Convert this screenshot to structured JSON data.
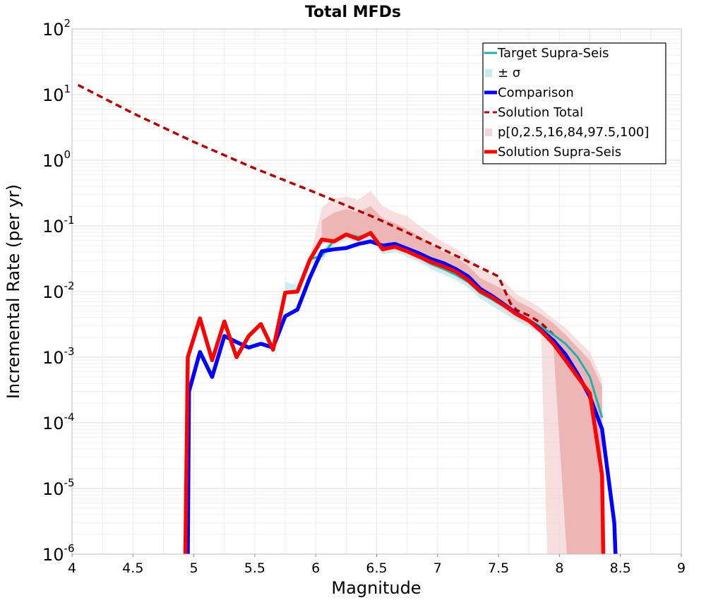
{
  "chart_data": {
    "type": "line",
    "title": "Total MFDs",
    "xlabel": "Magnitude",
    "ylabel": "Incremental Rate (per yr)",
    "xlim": [
      4,
      9
    ],
    "ylim": [
      1e-06,
      100
    ],
    "yscale": "log",
    "grid": true,
    "legend_position": "top-right",
    "x_ticks": [
      "4",
      "4.5",
      "5",
      "5.5",
      "6",
      "6.5",
      "7",
      "7.5",
      "8",
      "8.5",
      "9"
    ],
    "y_ticks": [
      {
        "base": "10",
        "exp": "-6"
      },
      {
        "base": "10",
        "exp": "-5"
      },
      {
        "base": "10",
        "exp": "-4"
      },
      {
        "base": "10",
        "exp": "-3"
      },
      {
        "base": "10",
        "exp": "-2"
      },
      {
        "base": "10",
        "exp": "-1"
      },
      {
        "base": "10",
        "exp": "0"
      },
      {
        "base": "10",
        "exp": "1"
      },
      {
        "base": "10",
        "exp": "2"
      }
    ],
    "legend": [
      {
        "label": "Target Supra-Seis",
        "color": "#20b2aa",
        "style": "line"
      },
      {
        "label": "± σ",
        "color": "#c8ecec",
        "style": "patch"
      },
      {
        "label": "Comparison",
        "color": "#0000ff",
        "style": "line-thick"
      },
      {
        "label": "Solution Total",
        "color": "#b20000",
        "style": "dashed"
      },
      {
        "label": "p[0,2.5,16,84,97.5,100]",
        "color": "#f4d4d4",
        "style": "patch"
      },
      {
        "label": "Solution Supra-Seis",
        "color": "#ff0000",
        "style": "line-thick"
      }
    ],
    "series": [
      {
        "name": "Solution Total",
        "color": "#b20000",
        "x": [
          4.05,
          4.5,
          5.0,
          5.5,
          6.0,
          6.5,
          7.0,
          7.5,
          7.55,
          7.6,
          7.65,
          7.75,
          7.85,
          7.95
        ],
        "y": [
          14,
          5.2,
          1.9,
          0.75,
          0.32,
          0.13,
          0.048,
          0.017,
          0.0105,
          0.0065,
          0.0052,
          0.0043,
          0.0033,
          0.0022
        ]
      },
      {
        "name": "Target Supra-Seis",
        "color": "#20b2aa",
        "x": [
          5.95,
          6.05,
          6.15,
          6.25,
          6.35,
          6.45,
          6.55,
          6.65,
          6.75,
          6.85,
          6.95,
          7.05,
          7.15,
          7.25,
          7.35,
          7.45,
          7.55,
          7.65,
          7.75,
          7.85,
          7.95,
          8.05,
          8.15,
          8.25,
          8.35
        ],
        "y": [
          0.031,
          0.035,
          0.06,
          0.075,
          0.068,
          0.075,
          0.045,
          0.047,
          0.04,
          0.033,
          0.026,
          0.022,
          0.018,
          0.014,
          0.0095,
          0.0075,
          0.0058,
          0.0045,
          0.0037,
          0.0029,
          0.0022,
          0.0016,
          0.001,
          0.0005,
          0.00012
        ]
      },
      {
        "name": "Comparison",
        "color": "#0000ff",
        "x": [
          4.95,
          4.96,
          5.05,
          5.15,
          5.25,
          5.35,
          5.45,
          5.55,
          5.65,
          5.75,
          5.85,
          5.95,
          6.05,
          6.15,
          6.25,
          6.35,
          6.45,
          6.55,
          6.65,
          6.75,
          6.85,
          6.95,
          7.05,
          7.15,
          7.25,
          7.35,
          7.45,
          7.55,
          7.65,
          7.75,
          7.85,
          7.95,
          8.05,
          8.15,
          8.25,
          8.35,
          8.45,
          8.46
        ],
        "y": [
          8e-07,
          0.0003,
          0.0012,
          0.0005,
          0.0021,
          0.0017,
          0.0014,
          0.0016,
          0.0014,
          0.0042,
          0.0053,
          0.016,
          0.041,
          0.044,
          0.046,
          0.053,
          0.058,
          0.05,
          0.053,
          0.045,
          0.038,
          0.031,
          0.027,
          0.022,
          0.017,
          0.011,
          0.0085,
          0.0063,
          0.0046,
          0.0036,
          0.0026,
          0.0018,
          0.0011,
          0.00055,
          0.00025,
          8e-05,
          3e-06,
          8e-07
        ]
      },
      {
        "name": "Solution Supra-Seis",
        "color": "#ff0000",
        "x": [
          4.93,
          4.95,
          5.05,
          5.15,
          5.25,
          5.35,
          5.45,
          5.55,
          5.65,
          5.75,
          5.85,
          5.95,
          6.05,
          6.15,
          6.25,
          6.35,
          6.45,
          6.55,
          6.65,
          6.75,
          6.85,
          6.95,
          7.05,
          7.15,
          7.25,
          7.35,
          7.45,
          7.55,
          7.65,
          7.75,
          7.85,
          7.95,
          8.05,
          8.15,
          8.25,
          8.35,
          8.36
        ],
        "y": [
          8e-07,
          0.001,
          0.0039,
          0.0009,
          0.0035,
          0.001,
          0.0021,
          0.0032,
          0.0013,
          0.0096,
          0.01,
          0.03,
          0.062,
          0.058,
          0.074,
          0.063,
          0.078,
          0.044,
          0.048,
          0.041,
          0.034,
          0.028,
          0.024,
          0.02,
          0.015,
          0.0102,
          0.0081,
          0.0061,
          0.0045,
          0.0036,
          0.0025,
          0.0016,
          0.0009,
          0.0005,
          0.00028,
          1.6e-05,
          8e-07
        ]
      }
    ],
    "bands": [
      {
        "name": "± σ",
        "color": "#b9e8e8",
        "x": [
          5.75,
          5.85,
          5.95,
          6.05,
          6.15,
          6.25,
          6.35,
          6.45,
          6.55,
          6.65,
          6.75,
          6.85,
          6.95,
          7.05,
          7.15,
          7.25,
          7.35,
          7.45,
          7.55,
          7.65,
          7.75,
          7.85,
          7.95,
          8.05,
          8.15,
          8.25,
          8.35
        ],
        "low": [
          0.01,
          0.0085,
          0.026,
          0.03,
          0.05,
          0.062,
          0.058,
          0.063,
          0.037,
          0.04,
          0.034,
          0.028,
          0.022,
          0.018,
          0.015,
          0.0115,
          0.0078,
          0.006,
          0.0046,
          0.0035,
          0.0029,
          0.0022,
          0.0017,
          0.0012,
          0.00072,
          0.00032,
          7e-05
        ],
        "high": [
          0.014,
          0.0125,
          0.037,
          0.041,
          0.071,
          0.089,
          0.081,
          0.089,
          0.055,
          0.056,
          0.048,
          0.04,
          0.031,
          0.027,
          0.022,
          0.017,
          0.012,
          0.0095,
          0.0075,
          0.0059,
          0.0048,
          0.0039,
          0.0029,
          0.0022,
          0.0014,
          0.00075,
          0.0002
        ]
      },
      {
        "name": "p[0,2.5,16,84,97.5,100] outer",
        "color": "#f4d4d4",
        "x": [
          5.95,
          6.05,
          6.15,
          6.25,
          6.35,
          6.45,
          6.55,
          6.65,
          6.75,
          6.85,
          6.95,
          7.05,
          7.15,
          7.25,
          7.35,
          7.45,
          7.55,
          7.65,
          7.75,
          7.85,
          7.9,
          8.05,
          8.15,
          8.25,
          8.35
        ],
        "low": [
          0.028,
          0.055,
          0.052,
          0.066,
          0.056,
          0.069,
          0.038,
          0.043,
          0.036,
          0.029,
          0.024,
          0.02,
          0.017,
          0.0125,
          0.0085,
          0.0068,
          0.005,
          0.0038,
          0.003,
          0.0022,
          8e-07,
          8e-07,
          8e-07,
          8e-07,
          8e-07
        ],
        "high": [
          0.032,
          0.19,
          0.26,
          0.28,
          0.25,
          0.34,
          0.2,
          0.16,
          0.14,
          0.1,
          0.075,
          0.055,
          0.045,
          0.033,
          0.022,
          0.018,
          0.014,
          0.009,
          0.0072,
          0.0055,
          0.0045,
          0.0028,
          0.0018,
          0.0012,
          0.00045
        ]
      },
      {
        "name": "p[0,2.5,16,84,97.5,100] inner",
        "color": "#e8a8a8",
        "x": [
          6.05,
          6.15,
          6.25,
          6.35,
          6.45,
          6.55,
          6.65,
          6.75,
          6.85,
          6.95,
          7.05,
          7.15,
          7.25,
          7.35,
          7.45,
          7.55,
          7.65,
          7.75,
          7.85,
          7.95,
          8.06,
          8.15,
          8.25,
          8.35
        ],
        "low": [
          0.058,
          0.055,
          0.07,
          0.06,
          0.073,
          0.041,
          0.045,
          0.038,
          0.031,
          0.026,
          0.022,
          0.018,
          0.0135,
          0.0092,
          0.0074,
          0.0055,
          0.0041,
          0.0032,
          0.0023,
          0.0015,
          8e-07,
          8e-07,
          8e-07,
          8e-07
        ],
        "high": [
          0.12,
          0.16,
          0.18,
          0.16,
          0.2,
          0.13,
          0.11,
          0.09,
          0.07,
          0.052,
          0.04,
          0.033,
          0.025,
          0.016,
          0.013,
          0.0105,
          0.0072,
          0.0058,
          0.0045,
          0.0033,
          0.0021,
          0.0014,
          0.0009,
          0.00036
        ]
      }
    ]
  }
}
